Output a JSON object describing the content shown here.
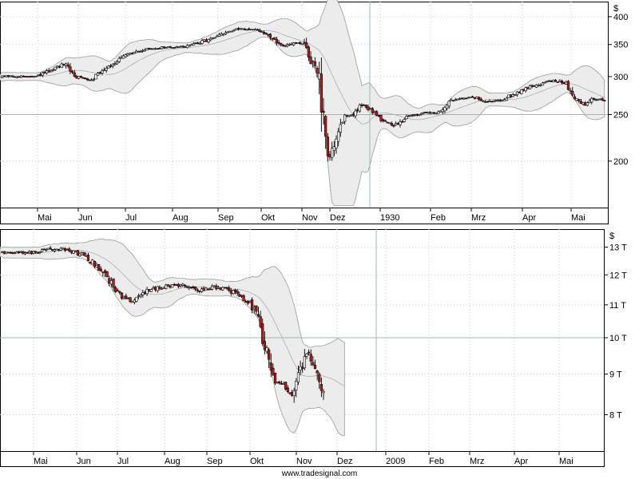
{
  "footer": {
    "credit": "www.tradesignal.com"
  },
  "colors": {
    "up": "#ffffff",
    "down": "#b71c1c",
    "wick": "#000000",
    "band_fill": "#ececec",
    "band_line": "#9a9a9a",
    "crosshair": "#9fb6b6",
    "grid": "#c8c8c8"
  },
  "chart_data": [
    {
      "type": "candlestick",
      "panel": "top",
      "y_scale": "log",
      "ylim": [
        160,
        430
      ],
      "y_unit": "$",
      "y_ticks": [
        {
          "v": 200,
          "label": "200"
        },
        {
          "v": 250,
          "label": "250"
        },
        {
          "v": 300,
          "label": "300"
        },
        {
          "v": 350,
          "label": "350"
        },
        {
          "v": 400,
          "label": "400"
        }
      ],
      "x_months": [
        "Mai",
        "Jun",
        "Jul",
        "Aug",
        "Sep",
        "Okt",
        "Nov",
        "Dez",
        "1930",
        "Feb",
        "Mrz",
        "Apr",
        "Mai"
      ],
      "overlay": "bollinger_bands",
      "reference_line": 250,
      "price_path": [
        [
          0,
          300
        ],
        [
          0.3,
          310
        ],
        [
          0.6,
          318
        ],
        [
          0.85,
          300
        ],
        [
          1.2,
          296
        ],
        [
          1.5,
          312
        ],
        [
          2.0,
          332
        ],
        [
          2.4,
          342
        ],
        [
          2.8,
          345
        ],
        [
          3.2,
          345
        ],
        [
          3.6,
          352
        ],
        [
          4.0,
          362
        ],
        [
          4.3,
          372
        ],
        [
          4.6,
          378
        ],
        [
          5.0,
          373
        ],
        [
          5.2,
          366
        ],
        [
          5.5,
          346
        ],
        [
          5.8,
          352
        ],
        [
          6.0,
          350
        ],
        [
          6.2,
          318
        ],
        [
          6.35,
          290
        ],
        [
          6.45,
          218
        ],
        [
          6.55,
          200
        ],
        [
          6.7,
          225
        ],
        [
          6.9,
          248
        ],
        [
          7.1,
          250
        ],
        [
          7.3,
          262
        ],
        [
          7.6,
          252
        ],
        [
          7.8,
          242
        ],
        [
          8.0,
          236
        ],
        [
          8.3,
          248
        ],
        [
          8.6,
          251
        ],
        [
          9.0,
          253
        ],
        [
          9.4,
          270
        ],
        [
          9.8,
          272
        ],
        [
          10.1,
          265
        ],
        [
          10.5,
          270
        ],
        [
          11.0,
          284
        ],
        [
          11.3,
          290
        ],
        [
          11.6,
          295
        ],
        [
          11.9,
          290
        ],
        [
          12.1,
          270
        ],
        [
          12.3,
          262
        ],
        [
          12.5,
          270
        ],
        [
          12.75,
          268
        ]
      ]
    },
    {
      "type": "candlestick",
      "panel": "bottom",
      "y_scale": "log",
      "ylim": [
        7200,
        13700
      ],
      "y_unit": "$",
      "y_ticks": [
        {
          "v": 8000,
          "label": "8 T"
        },
        {
          "v": 9000,
          "label": "9 T"
        },
        {
          "v": 10000,
          "label": "10 T"
        },
        {
          "v": 11000,
          "label": "11 T"
        },
        {
          "v": 12000,
          "label": "12 T"
        },
        {
          "v": 13000,
          "label": "13 T"
        }
      ],
      "x_months": [
        "Mai",
        "Jun",
        "Jul",
        "Aug",
        "Sep",
        "Okt",
        "Nov",
        "Dez",
        "2009",
        "Feb",
        "Mrz",
        "Apr",
        "Mai"
      ],
      "overlay": "bollinger_bands",
      "reference_line": 10000,
      "price_path": [
        [
          0,
          12800
        ],
        [
          0.5,
          12950
        ],
        [
          0.9,
          12850
        ],
        [
          1.2,
          12650
        ],
        [
          1.6,
          12050
        ],
        [
          2.0,
          11300
        ],
        [
          2.3,
          11100
        ],
        [
          2.6,
          11450
        ],
        [
          3.0,
          11600
        ],
        [
          3.4,
          11650
        ],
        [
          3.8,
          11450
        ],
        [
          4.1,
          11600
        ],
        [
          4.5,
          11450
        ],
        [
          4.9,
          11100
        ],
        [
          5.1,
          10700
        ],
        [
          5.3,
          9700
        ],
        [
          5.5,
          8800
        ],
        [
          5.7,
          8700
        ],
        [
          5.9,
          8500
        ],
        [
          6.1,
          9100
        ],
        [
          6.25,
          9550
        ],
        [
          6.45,
          9000
        ],
        [
          6.65,
          8450
        ],
        [
          6.8,
          8200
        ],
        [
          6.9,
          7900
        ],
        [
          7.0,
          8300
        ],
        [
          7.1,
          8750
        ]
      ]
    }
  ]
}
